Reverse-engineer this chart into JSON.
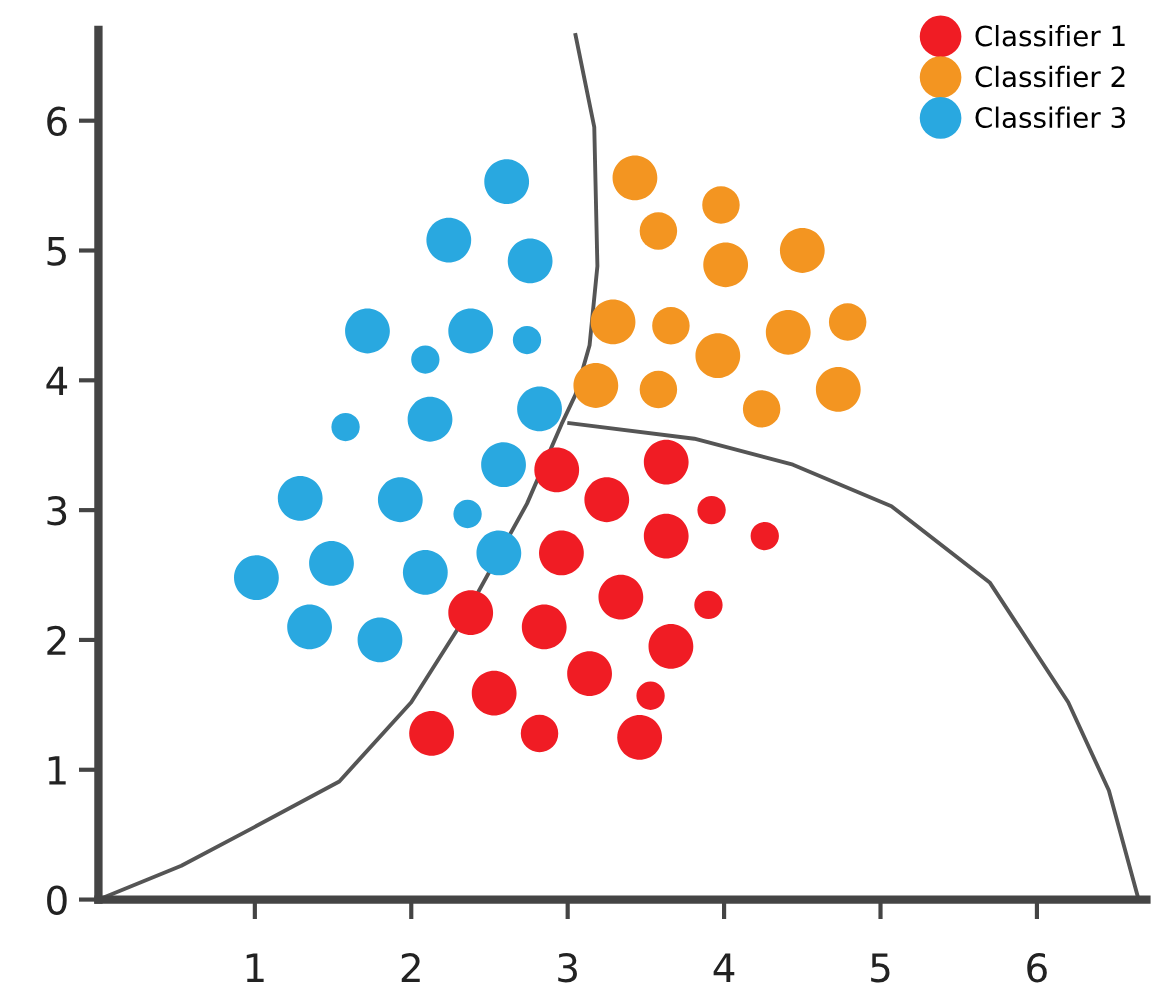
{
  "chart_data": {
    "type": "bubble",
    "xlim": [
      0,
      6.7
    ],
    "ylim": [
      0,
      6.7
    ],
    "xticks": [
      1,
      2,
      3,
      4,
      5,
      6
    ],
    "yticks": [
      {
        "value": 0,
        "label": "0"
      },
      1,
      2,
      3,
      4,
      5,
      6
    ],
    "grid": false,
    "legend": "top right",
    "marker": "circle",
    "series": [
      {
        "name": "Classifier 1",
        "color": "#f01c24",
        "x": [
          2.93,
          3.63,
          3.25,
          3.92,
          4.26,
          3.63,
          2.96,
          3.34,
          2.38,
          3.9,
          2.85,
          3.66,
          3.14,
          2.53,
          3.53,
          2.13,
          2.82,
          3.46
        ],
        "values": [
          3.31,
          3.37,
          3.08,
          3.0,
          2.8,
          2.8,
          2.67,
          2.33,
          2.21,
          2.27,
          2.1,
          1.95,
          1.74,
          1.59,
          1.57,
          1.28,
          1.28,
          1.25
        ],
        "sizes": [
          1,
          1,
          1,
          0.4,
          0.4,
          1,
          1,
          1,
          1,
          0.4,
          1,
          1,
          1,
          1,
          0.4,
          1,
          0.7,
          1
        ]
      },
      {
        "name": "Classifier 2",
        "color": "#f39521",
        "x": [
          3.43,
          3.58,
          3.98,
          4.01,
          4.5,
          3.29,
          3.66,
          3.96,
          4.41,
          4.79,
          3.18,
          3.58,
          4.24,
          4.73
        ],
        "values": [
          5.56,
          5.15,
          5.35,
          4.89,
          5.0,
          4.45,
          4.42,
          4.19,
          4.37,
          4.45,
          3.96,
          3.93,
          3.78,
          3.93
        ],
        "sizes": [
          1,
          0.7,
          0.7,
          1,
          1,
          1,
          0.7,
          1,
          1,
          0.7,
          1,
          0.7,
          0.7,
          1
        ]
      },
      {
        "name": "Classifier 3",
        "color": "#29a8e0",
        "x": [
          2.61,
          2.24,
          2.76,
          1.72,
          2.38,
          2.74,
          2.09,
          2.82,
          2.12,
          1.58,
          2.59,
          1.29,
          1.93,
          2.36,
          1.49,
          2.09,
          2.56,
          1.01,
          1.35,
          1.8
        ],
        "values": [
          5.53,
          5.08,
          4.92,
          4.38,
          4.38,
          4.31,
          4.16,
          3.78,
          3.7,
          3.64,
          3.35,
          3.09,
          3.08,
          2.97,
          2.59,
          2.52,
          2.67,
          2.48,
          2.1,
          2.0
        ],
        "sizes": [
          1,
          1,
          1,
          1,
          1,
          0.4,
          0.4,
          1,
          1,
          0.4,
          1,
          1,
          1,
          0.4,
          1,
          1,
          1,
          1,
          1,
          1
        ]
      },
      {
        "type": "line",
        "marker": "none",
        "color": "#555555",
        "x": [
          3.05,
          3.17,
          3.19,
          3.14,
          3.05,
          2.96,
          2.74,
          2.3,
          2.0,
          1.54,
          1.0,
          0.53,
          0
        ],
        "values": [
          6.66,
          5.95,
          4.88,
          4.27,
          3.89,
          3.66,
          3.05,
          2.09,
          1.52,
          0.91,
          0.56,
          0.26,
          0
        ]
      },
      {
        "type": "line",
        "marker": "none",
        "color": "#555555",
        "x": [
          3.01,
          3.81,
          4.44,
          5.07,
          5.7,
          6.2,
          6.46,
          6.65
        ],
        "values": [
          3.67,
          3.55,
          3.35,
          3.03,
          2.44,
          1.52,
          0.84,
          0
        ]
      }
    ]
  }
}
